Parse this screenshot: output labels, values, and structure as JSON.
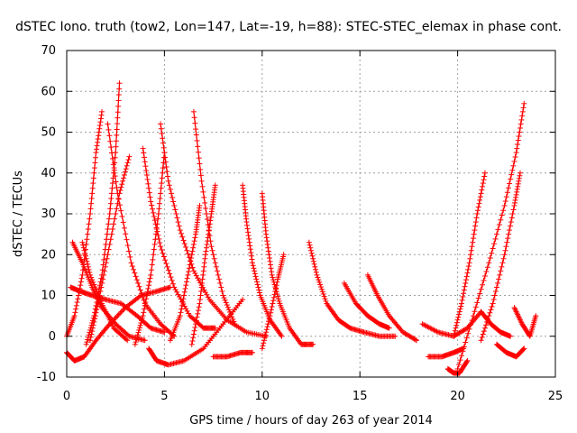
{
  "chart_data": {
    "type": "scatter",
    "title": "dSTEC Iono. truth (tow2, Lon=147, Lat=-19, h=88): STEC-STEC_elemax in phase cont.",
    "xlabel": "GPS time / hours of day 263 of year 2014",
    "ylabel": "dSTEC  / TECUs",
    "xlim": [
      0,
      25
    ],
    "ylim": [
      -10,
      70
    ],
    "xticks": [
      0,
      5,
      10,
      15,
      20,
      25
    ],
    "yticks": [
      -10,
      0,
      10,
      20,
      30,
      40,
      50,
      60,
      70
    ],
    "grid": true,
    "marker": "+",
    "color": "#ff0000",
    "series": [
      {
        "x": [
          0.0,
          0.4,
          0.8,
          1.2,
          1.5,
          1.8
        ],
        "y": [
          0,
          5,
          15,
          30,
          45,
          55
        ]
      },
      {
        "x": [
          0.0,
          0.4,
          0.9,
          1.5,
          2.2,
          3.0,
          3.8,
          4.6,
          5.3
        ],
        "y": [
          -4,
          -6,
          -5,
          -1,
          3,
          7,
          10,
          11,
          12
        ]
      },
      {
        "x": [
          0.2,
          0.7,
          1.3,
          2.0,
          2.8,
          3.6,
          4.3,
          5.0
        ],
        "y": [
          12,
          11,
          10,
          9,
          8,
          5,
          2,
          1
        ]
      },
      {
        "x": [
          0.3,
          0.8,
          1.3,
          1.8,
          2.5,
          3.2,
          4.0
        ],
        "y": [
          23,
          18,
          12,
          7,
          3,
          0,
          -1
        ]
      },
      {
        "x": [
          1.0,
          1.4,
          1.8,
          2.2,
          2.5,
          2.7
        ],
        "y": [
          -2,
          5,
          15,
          30,
          45,
          62
        ]
      },
      {
        "x": [
          0.8,
          1.2,
          1.8,
          2.4,
          3.1
        ],
        "y": [
          23,
          15,
          8,
          2,
          -1
        ]
      },
      {
        "x": [
          1.2,
          1.6,
          2.1,
          2.7,
          3.2
        ],
        "y": [
          -1,
          8,
          20,
          35,
          44
        ]
      },
      {
        "x": [
          2.1,
          2.6,
          3.3,
          4.0,
          4.8,
          5.5
        ],
        "y": [
          52,
          35,
          18,
          8,
          3,
          0
        ]
      },
      {
        "x": [
          3.5,
          3.9,
          4.3,
          4.7,
          5.0
        ],
        "y": [
          -2,
          5,
          15,
          30,
          45
        ]
      },
      {
        "x": [
          3.9,
          4.3,
          4.8,
          5.5,
          6.3,
          7.0,
          7.6
        ],
        "y": [
          46,
          33,
          22,
          12,
          5,
          2,
          2
        ]
      },
      {
        "x": [
          4.2,
          4.6,
          5.2,
          6.0,
          7.0,
          8.0,
          9.0
        ],
        "y": [
          -3,
          -6,
          -7,
          -6,
          -3,
          3,
          9
        ]
      },
      {
        "x": [
          4.8,
          5.2,
          5.8,
          6.5,
          7.3,
          8.2,
          9.2,
          10.2
        ],
        "y": [
          52,
          38,
          26,
          16,
          9,
          4,
          1,
          0
        ]
      },
      {
        "x": [
          5.3,
          5.8,
          6.2,
          6.6,
          6.8
        ],
        "y": [
          -1,
          5,
          15,
          25,
          32
        ]
      },
      {
        "x": [
          6.5,
          6.9,
          7.4,
          8.0,
          8.6
        ],
        "y": [
          55,
          38,
          22,
          10,
          3
        ]
      },
      {
        "x": [
          6.4,
          6.8,
          7.1,
          7.4,
          7.6
        ],
        "y": [
          -2,
          8,
          20,
          30,
          37
        ]
      },
      {
        "x": [
          7.5,
          8.2,
          8.9,
          9.5
        ],
        "y": [
          -5,
          -5,
          -4,
          -4
        ]
      },
      {
        "x": [
          9.0,
          9.2,
          9.5,
          9.9,
          10.4,
          11.0
        ],
        "y": [
          37,
          28,
          18,
          10,
          4,
          0
        ]
      },
      {
        "x": [
          10.0,
          10.2,
          10.5,
          10.9,
          11.4,
          12.0,
          12.6
        ],
        "y": [
          35,
          25,
          15,
          8,
          2,
          -2,
          -2
        ]
      },
      {
        "x": [
          10.0,
          10.4,
          10.8,
          11.1
        ],
        "y": [
          -3,
          5,
          14,
          20
        ]
      },
      {
        "x": [
          12.4,
          12.8,
          13.3,
          13.9,
          14.5,
          15.2,
          16.0,
          16.8
        ],
        "y": [
          23,
          15,
          8,
          4,
          2,
          1,
          0,
          0
        ]
      },
      {
        "x": [
          14.2,
          14.8,
          15.4,
          16.0,
          16.5
        ],
        "y": [
          13,
          8,
          5,
          3,
          2
        ]
      },
      {
        "x": [
          15.4,
          15.9,
          16.5,
          17.2,
          17.9
        ],
        "y": [
          15,
          10,
          5,
          1,
          -1
        ]
      },
      {
        "x": [
          18.2,
          19.0,
          19.8,
          20.5,
          21.2
        ],
        "y": [
          3,
          1,
          0,
          2,
          6
        ]
      },
      {
        "x": [
          18.5,
          19.2,
          19.8,
          20.3
        ],
        "y": [
          -5,
          -5,
          -4,
          -3
        ]
      },
      {
        "x": [
          19.5,
          19.8,
          20.1,
          20.5
        ],
        "y": [
          -8,
          -9,
          -9,
          -6
        ]
      },
      {
        "x": [
          19.8,
          20.2,
          20.6,
          21.0,
          21.4
        ],
        "y": [
          0,
          8,
          18,
          30,
          40
        ]
      },
      {
        "x": [
          20.0,
          20.8,
          21.6,
          22.4,
          23.0,
          23.4
        ],
        "y": [
          -8,
          5,
          18,
          32,
          45,
          57
        ]
      },
      {
        "x": [
          21.2,
          21.8,
          22.4,
          22.9,
          23.2
        ],
        "y": [
          -1,
          8,
          20,
          32,
          40
        ]
      },
      {
        "x": [
          21.2,
          21.7,
          22.2,
          22.7
        ],
        "y": [
          6,
          3,
          1,
          0
        ]
      },
      {
        "x": [
          22.0,
          22.5,
          23.0,
          23.4
        ],
        "y": [
          -2,
          -4,
          -5,
          -3
        ]
      },
      {
        "x": [
          22.9,
          23.3,
          23.7,
          24.0
        ],
        "y": [
          7,
          3,
          0,
          5
        ]
      }
    ]
  }
}
